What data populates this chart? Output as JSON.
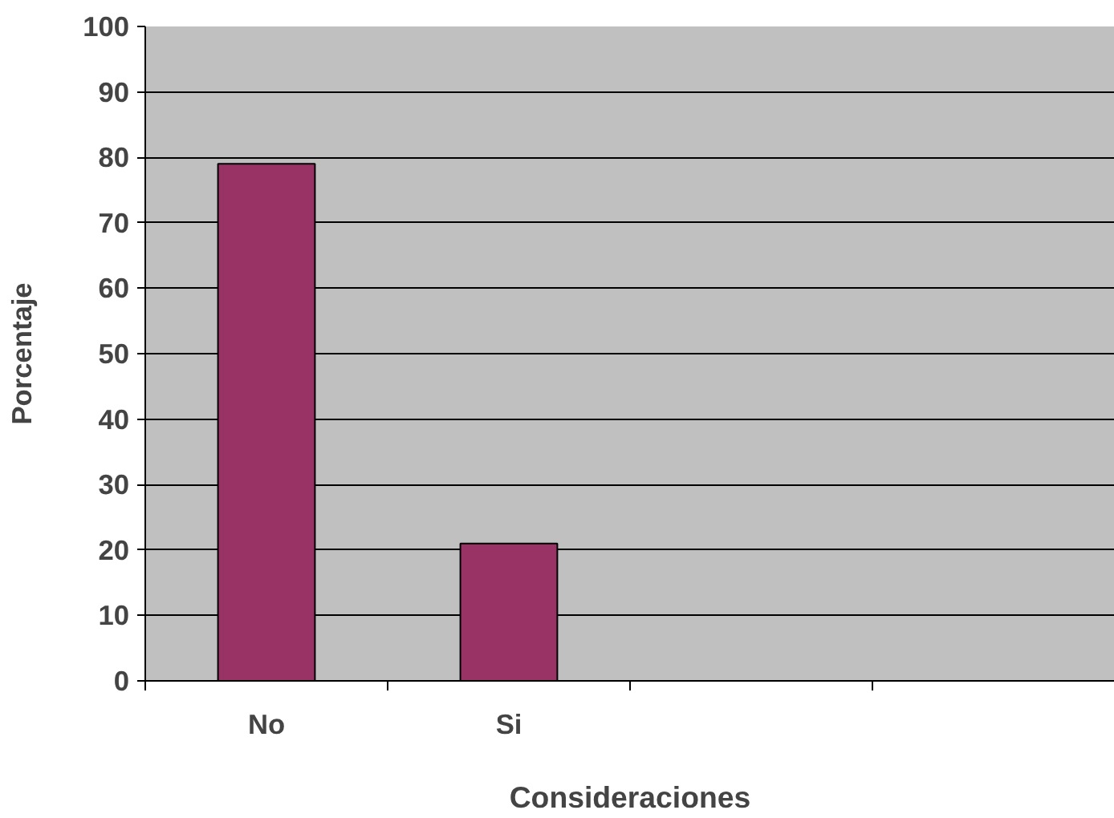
{
  "chart_data": {
    "type": "bar",
    "xlabel": "Consideraciones",
    "ylabel": "Porcentaje",
    "categories": [
      "No",
      "Si",
      null,
      null
    ],
    "values": [
      79,
      21,
      null,
      null
    ],
    "color": "#993366",
    "ylim": [
      0,
      100
    ],
    "yticks": [
      0,
      10,
      20,
      30,
      40,
      50,
      60,
      70,
      80,
      90,
      100
    ],
    "grid": "y"
  }
}
